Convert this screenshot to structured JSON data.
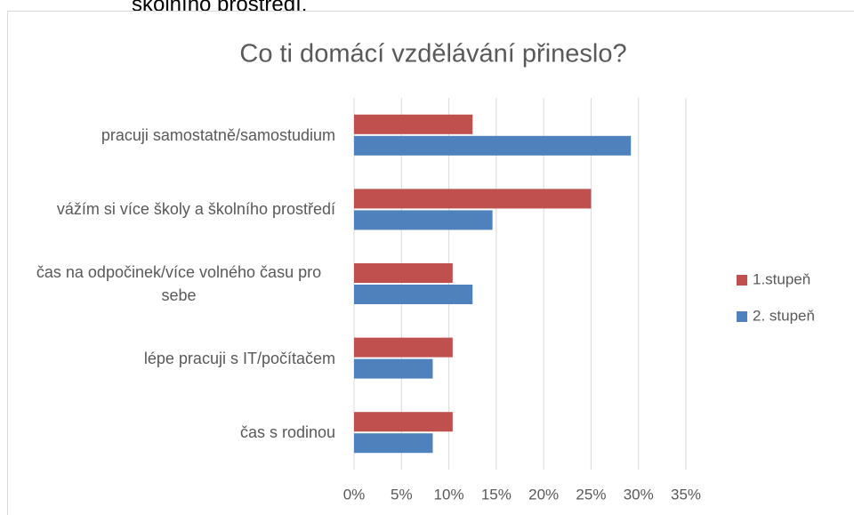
{
  "top_text": "školního prostředí.",
  "chart_data": {
    "type": "bar",
    "orientation": "horizontal",
    "title": "Co ti domácí vzdělávání přineslo?",
    "categories": [
      "pracuji samostatně/samostudium",
      "vážím si více školy a školního prostředí",
      "čas na odpočinek/více volného času pro sebe",
      "lépe pracuji s IT/počítačem",
      "čas s rodinou"
    ],
    "series": [
      {
        "name": "1.stupeň",
        "color": "#c0504d",
        "values": [
          12.5,
          25,
          10.4,
          10.4,
          10.4
        ]
      },
      {
        "name": "2. stupeň",
        "color": "#4f81bd",
        "values": [
          29.2,
          14.6,
          12.5,
          8.3,
          8.3
        ]
      }
    ],
    "xlim": [
      0,
      35
    ],
    "xticks": [
      {
        "value": 0,
        "label": "0%"
      },
      {
        "value": 5,
        "label": "5%"
      },
      {
        "value": 10,
        "label": "10%"
      },
      {
        "value": 15,
        "label": "15%"
      },
      {
        "value": 20,
        "label": "20%"
      },
      {
        "value": 25,
        "label": "25%"
      },
      {
        "value": 30,
        "label": "30%"
      },
      {
        "value": 35,
        "label": "35%"
      }
    ],
    "grid": true,
    "legend": "right"
  }
}
